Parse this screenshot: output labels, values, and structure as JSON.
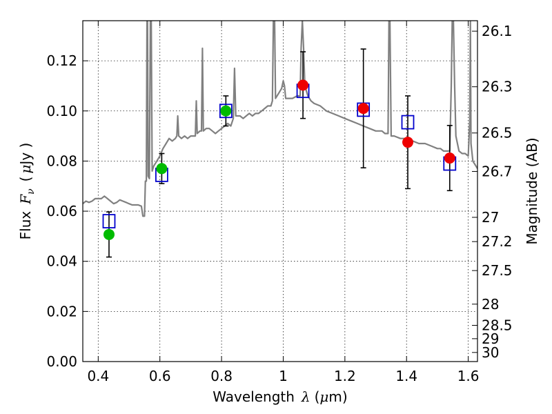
{
  "chart_data": {
    "type": "scatter",
    "xlabel_text": "Wavelength",
    "xlabel_symbol": "λ",
    "xlabel_unit_open": "(",
    "xlabel_unit_mu": "μ",
    "xlabel_unit_rest": "m)",
    "ylabel_text": "Flux",
    "ylabel_symbol": "F",
    "ylabel_sub": "ν",
    "ylabel_unit_open": "(",
    "ylabel_unit_mu": "μ",
    "ylabel_unit_rest": "Jy )",
    "y2label": "Magnitude (AB)",
    "xlim": [
      0.35,
      1.63
    ],
    "ylim": [
      0.0,
      0.136
    ],
    "grid": true,
    "x_ticks": [
      0.4,
      0.6,
      0.8,
      1.0,
      1.2,
      1.4,
      1.6
    ],
    "x_tick_labels": [
      "0.4",
      "0.6",
      "0.8",
      "1",
      "1.2",
      "1.4",
      "1.6"
    ],
    "y_ticks": [
      0.0,
      0.02,
      0.04,
      0.06,
      0.08,
      0.1,
      0.12
    ],
    "y_tick_labels": [
      "0.00",
      "0.02",
      "0.04",
      "0.06",
      "0.08",
      "0.10",
      "0.12"
    ],
    "mag_ticks": [
      26.1,
      26.3,
      26.5,
      26.7,
      27,
      27.2,
      27.5,
      28,
      28.5,
      29,
      30
    ],
    "mag_tick_labels": [
      "26.1",
      "26.3",
      "26.5",
      "26.7",
      "27",
      "27.2",
      "27.5",
      "28",
      "28.5",
      "29",
      "30"
    ],
    "colors": {
      "spectrum": "#808080",
      "model_box": "#0000cc",
      "obs_optical": "#00bb00",
      "obs_nir": "#ee0000",
      "errorbar": "#000000"
    },
    "model_photometry": [
      {
        "x": 0.435,
        "y": 0.056
      },
      {
        "x": 0.606,
        "y": 0.0745
      },
      {
        "x": 0.814,
        "y": 0.1
      },
      {
        "x": 1.064,
        "y": 0.108
      },
      {
        "x": 1.26,
        "y": 0.1005
      },
      {
        "x": 1.404,
        "y": 0.0955
      },
      {
        "x": 1.54,
        "y": 0.079
      }
    ],
    "observed_photometry": [
      {
        "x": 0.435,
        "y": 0.0507,
        "err": 0.009,
        "band": "optical"
      },
      {
        "x": 0.606,
        "y": 0.077,
        "err": 0.006,
        "band": "optical"
      },
      {
        "x": 0.814,
        "y": 0.1,
        "err": 0.006,
        "band": "optical"
      },
      {
        "x": 1.064,
        "y": 0.1103,
        "err": 0.0133,
        "band": "nir"
      },
      {
        "x": 1.26,
        "y": 0.101,
        "err": 0.0237,
        "band": "nir"
      },
      {
        "x": 1.404,
        "y": 0.0875,
        "err": 0.0185,
        "band": "nir"
      },
      {
        "x": 1.54,
        "y": 0.0812,
        "err": 0.013,
        "band": "nir"
      }
    ],
    "model_spectrum": [
      [
        0.35,
        0.063
      ],
      [
        0.36,
        0.064
      ],
      [
        0.37,
        0.0635
      ],
      [
        0.38,
        0.064
      ],
      [
        0.39,
        0.065
      ],
      [
        0.4,
        0.065
      ],
      [
        0.41,
        0.065
      ],
      [
        0.42,
        0.066
      ],
      [
        0.43,
        0.065
      ],
      [
        0.44,
        0.064
      ],
      [
        0.45,
        0.063
      ],
      [
        0.46,
        0.0635
      ],
      [
        0.47,
        0.0645
      ],
      [
        0.48,
        0.064
      ],
      [
        0.49,
        0.0635
      ],
      [
        0.5,
        0.063
      ],
      [
        0.51,
        0.0625
      ],
      [
        0.52,
        0.0625
      ],
      [
        0.53,
        0.0625
      ],
      [
        0.54,
        0.062
      ],
      [
        0.545,
        0.058
      ],
      [
        0.55,
        0.058
      ],
      [
        0.553,
        0.072
      ],
      [
        0.556,
        0.072
      ],
      [
        0.558,
        0.136
      ],
      [
        0.56,
        0.136
      ],
      [
        0.562,
        0.074
      ],
      [
        0.566,
        0.073
      ],
      [
        0.569,
        0.136
      ],
      [
        0.572,
        0.136
      ],
      [
        0.575,
        0.076
      ],
      [
        0.58,
        0.078
      ],
      [
        0.59,
        0.08
      ],
      [
        0.6,
        0.082
      ],
      [
        0.61,
        0.085
      ],
      [
        0.62,
        0.087
      ],
      [
        0.63,
        0.089
      ],
      [
        0.64,
        0.088
      ],
      [
        0.65,
        0.089
      ],
      [
        0.655,
        0.09
      ],
      [
        0.658,
        0.098
      ],
      [
        0.661,
        0.09
      ],
      [
        0.67,
        0.089
      ],
      [
        0.68,
        0.09
      ],
      [
        0.69,
        0.089
      ],
      [
        0.7,
        0.09
      ],
      [
        0.71,
        0.09
      ],
      [
        0.715,
        0.09
      ],
      [
        0.718,
        0.104
      ],
      [
        0.721,
        0.091
      ],
      [
        0.73,
        0.092
      ],
      [
        0.735,
        0.092
      ],
      [
        0.738,
        0.125
      ],
      [
        0.741,
        0.092
      ],
      [
        0.75,
        0.093
      ],
      [
        0.76,
        0.093
      ],
      [
        0.77,
        0.092
      ],
      [
        0.78,
        0.091
      ],
      [
        0.79,
        0.092
      ],
      [
        0.8,
        0.093
      ],
      [
        0.81,
        0.094
      ],
      [
        0.82,
        0.095
      ],
      [
        0.83,
        0.094
      ],
      [
        0.838,
        0.097
      ],
      [
        0.842,
        0.117
      ],
      [
        0.846,
        0.098
      ],
      [
        0.86,
        0.098
      ],
      [
        0.87,
        0.097
      ],
      [
        0.88,
        0.098
      ],
      [
        0.89,
        0.099
      ],
      [
        0.9,
        0.098
      ],
      [
        0.91,
        0.099
      ],
      [
        0.92,
        0.099
      ],
      [
        0.93,
        0.1
      ],
      [
        0.94,
        0.101
      ],
      [
        0.95,
        0.102
      ],
      [
        0.96,
        0.102
      ],
      [
        0.965,
        0.104
      ],
      [
        0.968,
        0.136
      ],
      [
        0.972,
        0.136
      ],
      [
        0.975,
        0.105
      ],
      [
        0.985,
        0.107
      ],
      [
        0.995,
        0.109
      ],
      [
        1.0,
        0.112
      ],
      [
        1.004,
        0.11
      ],
      [
        1.008,
        0.105
      ],
      [
        1.01,
        0.105
      ],
      [
        1.02,
        0.105
      ],
      [
        1.03,
        0.105
      ],
      [
        1.045,
        0.106
      ],
      [
        1.055,
        0.106
      ],
      [
        1.058,
        0.125
      ],
      [
        1.062,
        0.136
      ],
      [
        1.066,
        0.125
      ],
      [
        1.07,
        0.11
      ],
      [
        1.08,
        0.106
      ],
      [
        1.09,
        0.104
      ],
      [
        1.1,
        0.103
      ],
      [
        1.12,
        0.102
      ],
      [
        1.14,
        0.1
      ],
      [
        1.16,
        0.099
      ],
      [
        1.18,
        0.098
      ],
      [
        1.2,
        0.097
      ],
      [
        1.22,
        0.096
      ],
      [
        1.24,
        0.095
      ],
      [
        1.26,
        0.094
      ],
      [
        1.28,
        0.093
      ],
      [
        1.3,
        0.092
      ],
      [
        1.31,
        0.092
      ],
      [
        1.32,
        0.092
      ],
      [
        1.33,
        0.091
      ],
      [
        1.34,
        0.091
      ],
      [
        1.343,
        0.136
      ],
      [
        1.346,
        0.136
      ],
      [
        1.35,
        0.09
      ],
      [
        1.36,
        0.09
      ],
      [
        1.38,
        0.089
      ],
      [
        1.4,
        0.089
      ],
      [
        1.42,
        0.088
      ],
      [
        1.44,
        0.087
      ],
      [
        1.46,
        0.087
      ],
      [
        1.48,
        0.086
      ],
      [
        1.5,
        0.085
      ],
      [
        1.51,
        0.085
      ],
      [
        1.52,
        0.084
      ],
      [
        1.53,
        0.084
      ],
      [
        1.54,
        0.084
      ],
      [
        1.545,
        0.11
      ],
      [
        1.548,
        0.136
      ],
      [
        1.552,
        0.136
      ],
      [
        1.556,
        0.11
      ],
      [
        1.56,
        0.09
      ],
      [
        1.57,
        0.084
      ],
      [
        1.58,
        0.083
      ],
      [
        1.59,
        0.083
      ],
      [
        1.6,
        0.082
      ],
      [
        1.605,
        0.096
      ],
      [
        1.607,
        0.136
      ],
      [
        1.609,
        0.087
      ],
      [
        1.615,
        0.08
      ],
      [
        1.62,
        0.079
      ],
      [
        1.625,
        0.078
      ],
      [
        1.63,
        0.077
      ]
    ]
  }
}
